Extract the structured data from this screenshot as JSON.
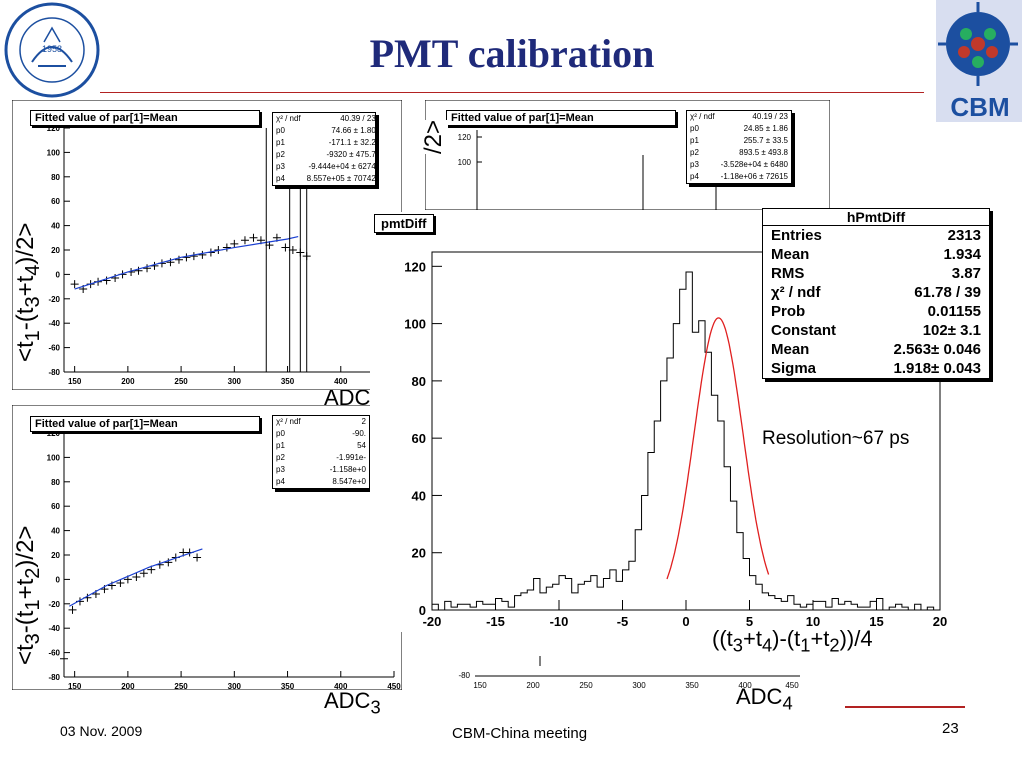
{
  "slide": {
    "title": "PMT calibration",
    "date": "03 Nov. 2009",
    "meeting": "CBM-China meeting",
    "page": "23"
  },
  "logos": {
    "left_year": "1958",
    "right_text": "CBM",
    "colors": {
      "cbm_blue": "#1c4fa0",
      "title_blue": "#1f2a7a",
      "accent_red": "#b22222"
    }
  },
  "labels": {
    "y_top": "<t1-(t3+t4)/2>",
    "y_bottom": "<t3-(t1+t2)/2>",
    "x_left_bottom": "ADC3",
    "x_right_bottom": "ADC4",
    "x_left_top_partial": "ADC",
    "y_right_top_partial": "/2>",
    "resolution": "Resolution~67 ps",
    "diff_xlabel": "((t3+t4)-(t1+t2))/4"
  },
  "panels": {
    "tl": {
      "title": "Fitted value of par[1]=Mean",
      "stats": [
        [
          "χ² / ndf",
          "40.39 / 23"
        ],
        [
          "p0",
          "74.66 ± 1.80"
        ],
        [
          "p1",
          "-171.1 ± 32.2"
        ],
        [
          "p2",
          "-9320 ± 475.7"
        ],
        [
          "p3",
          "-9.444e+04 ± 6274"
        ],
        [
          "p4",
          "8.557e+05 ± 70742"
        ]
      ]
    },
    "tr": {
      "title": "Fitted value of par[1]=Mean",
      "stats": [
        [
          "χ² / ndf",
          "40.19 / 23"
        ],
        [
          "p0",
          "24.85 ± 1.86"
        ],
        [
          "p1",
          "255.7 ± 33.5"
        ],
        [
          "p2",
          "893.5 ± 493.8"
        ],
        [
          "p3",
          "-3.528e+04 ± 6480"
        ],
        [
          "p4",
          "-1.18e+06 ± 72615"
        ]
      ]
    },
    "bl": {
      "title": "Fitted value of par[1]=Mean",
      "stats": [
        [
          "χ² / ndf",
          "2"
        ],
        [
          "p0",
          "-90."
        ],
        [
          "p1",
          "54"
        ],
        [
          "p2",
          "-1.991e-"
        ],
        [
          "p3",
          "-1.158e+0"
        ],
        [
          "p4",
          "8.547e+0"
        ]
      ]
    },
    "diff": {
      "title": "pmtDiff",
      "stats_title": "hPmtDiff",
      "stats": [
        [
          "Entries",
          "2313"
        ],
        [
          "Mean",
          "1.934"
        ],
        [
          "RMS",
          "3.87"
        ],
        [
          "χ² / ndf",
          "61.78 / 39"
        ],
        [
          "Prob",
          "0.01155"
        ],
        [
          "Constant",
          "102± 3.1"
        ],
        [
          "Mean",
          "2.563± 0.046"
        ],
        [
          "Sigma",
          "1.918± 0.043"
        ]
      ]
    }
  },
  "chart_data": [
    {
      "type": "scatter",
      "id": "tl",
      "title": "Fitted value of par[1]=Mean",
      "xlim": [
        140,
        450
      ],
      "ylim": [
        -80,
        120
      ],
      "x_ticks": [
        150,
        200,
        250,
        300,
        350,
        400
      ],
      "y_ticks": [
        -80,
        -60,
        -40,
        -20,
        0,
        20,
        40,
        60,
        80,
        100,
        120
      ],
      "x": [
        150,
        158,
        165,
        172,
        180,
        188,
        195,
        203,
        210,
        218,
        225,
        232,
        240,
        248,
        255,
        262,
        270,
        278,
        285,
        293,
        300,
        310,
        318,
        325,
        333,
        340,
        348,
        355,
        362,
        368
      ],
      "y": [
        -8,
        -12,
        -8,
        -6,
        -5,
        -3,
        0,
        2,
        3,
        5,
        7,
        9,
        10,
        12,
        14,
        15,
        16,
        18,
        20,
        22,
        25,
        28,
        30,
        28,
        24,
        30,
        22,
        20,
        18,
        15
      ],
      "fit_x": [
        150,
        200,
        250,
        300,
        350,
        360
      ],
      "fit_y": [
        -12,
        2,
        14,
        22,
        29,
        31
      ]
    },
    {
      "type": "scatter",
      "id": "bl",
      "title": "Fitted value of par[1]=Mean",
      "xlim": [
        140,
        450
      ],
      "ylim": [
        -80,
        120
      ],
      "x_ticks": [
        150,
        200,
        250,
        300,
        350,
        400,
        450
      ],
      "y_ticks": [
        -80,
        -60,
        -40,
        -20,
        0,
        20,
        40,
        60,
        80,
        100,
        120
      ],
      "x": [
        140,
        148,
        155,
        162,
        170,
        178,
        185,
        193,
        200,
        208,
        215,
        222,
        230,
        238,
        245,
        252,
        258,
        265
      ],
      "y": [
        -65,
        -25,
        -18,
        -15,
        -12,
        -8,
        -5,
        -3,
        0,
        2,
        5,
        8,
        12,
        14,
        18,
        22,
        22,
        18
      ],
      "fit_x": [
        145,
        180,
        220,
        270
      ],
      "fit_y": [
        -22,
        -5,
        10,
        25
      ]
    },
    {
      "type": "histogram",
      "id": "pmtDiff",
      "title": "pmtDiff",
      "xlabel": "((t3+t4)-(t1+t2))/4",
      "xlim": [
        -20,
        20
      ],
      "ylim": [
        0,
        125
      ],
      "x_ticks": [
        -20,
        -15,
        -10,
        -5,
        0,
        5,
        10,
        15,
        20
      ],
      "y_ticks": [
        0,
        20,
        40,
        60,
        80,
        100,
        120
      ],
      "bin_start": -20,
      "bin_width": 0.5,
      "values": [
        2,
        0,
        3,
        1,
        2,
        2,
        1,
        3,
        2,
        2,
        4,
        3,
        1,
        5,
        6,
        7,
        11,
        6,
        8,
        9,
        12,
        11,
        6,
        9,
        10,
        12,
        8,
        11,
        14,
        10,
        14,
        17,
        28,
        40,
        55,
        66,
        80,
        88,
        100,
        112,
        118,
        97,
        101,
        90,
        75,
        66,
        50,
        38,
        27,
        18,
        12,
        9,
        6,
        5,
        4,
        3,
        5,
        2,
        1,
        2,
        3,
        3,
        1,
        4,
        2,
        3,
        2,
        1,
        1,
        3,
        4,
        0,
        1,
        2,
        1,
        0,
        2,
        0,
        1,
        0
      ],
      "fit": {
        "constant": 102,
        "mean": 2.563,
        "sigma": 1.918,
        "range": [
          -1.5,
          6.5
        ]
      }
    },
    {
      "type": "scatter",
      "id": "tr",
      "xlim": [
        140,
        450
      ],
      "ylim": [
        -80,
        120
      ],
      "x_ticks": [
        150,
        200,
        250,
        300,
        350,
        400,
        450
      ],
      "y_ticks": [
        100,
        120
      ]
    }
  ]
}
